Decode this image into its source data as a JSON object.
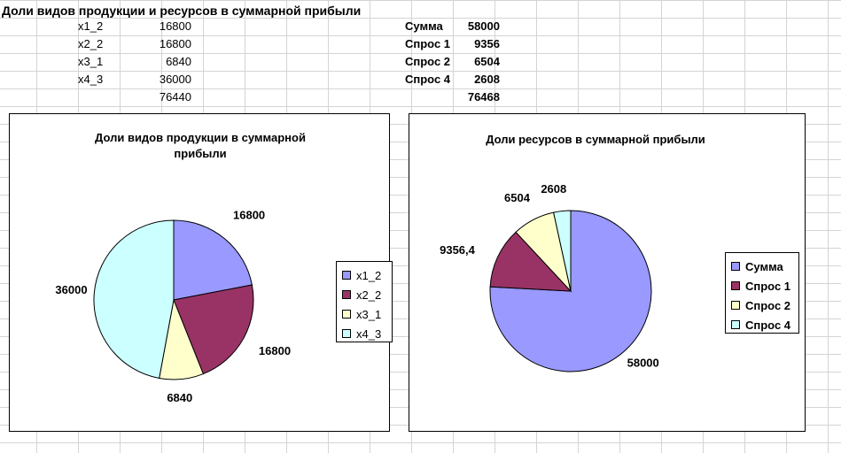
{
  "sheet": {
    "title": "Доли видов продукции и ресурсов в суммарной прибыли",
    "products": [
      {
        "label": "x1_2",
        "value": "16800"
      },
      {
        "label": "x2_2",
        "value": "16800"
      },
      {
        "label": "x3_1",
        "value": "6840"
      },
      {
        "label": "x4_3",
        "value": "36000"
      }
    ],
    "products_total": "76440",
    "resources": [
      {
        "label": "Сумма",
        "value": "58000"
      },
      {
        "label": "Спрос 1",
        "value": "9356"
      },
      {
        "label": "Спрос 2",
        "value": "6504"
      },
      {
        "label": "Спрос 4",
        "value": "2608"
      }
    ],
    "resources_total": "76468"
  },
  "chart_data": [
    {
      "type": "pie",
      "title": "Доли видов продукции в суммарной прибыли",
      "title_line1": "Доли видов продукции в суммарной",
      "title_line2": "прибыли",
      "categories": [
        "x1_2",
        "x2_2",
        "x3_1",
        "x4_3"
      ],
      "values": [
        16800,
        16800,
        6840,
        36000
      ],
      "data_labels": [
        "16800",
        "16800",
        "6840",
        "36000"
      ],
      "colors": [
        "#9999ff",
        "#993366",
        "#ffffcc",
        "#ccffff"
      ],
      "legend_position": "right"
    },
    {
      "type": "pie",
      "title": "Доли ресурсов в суммарной прибыли",
      "categories": [
        "Сумма",
        "Спрос 1",
        "Спрос 2",
        "Спрос 4"
      ],
      "values": [
        58000,
        9356.4,
        6504,
        2608
      ],
      "data_labels": [
        "58000",
        "9356,4",
        "6504",
        "2608"
      ],
      "colors": [
        "#9999ff",
        "#993366",
        "#ffffcc",
        "#ccffff"
      ],
      "legend_position": "right"
    }
  ]
}
